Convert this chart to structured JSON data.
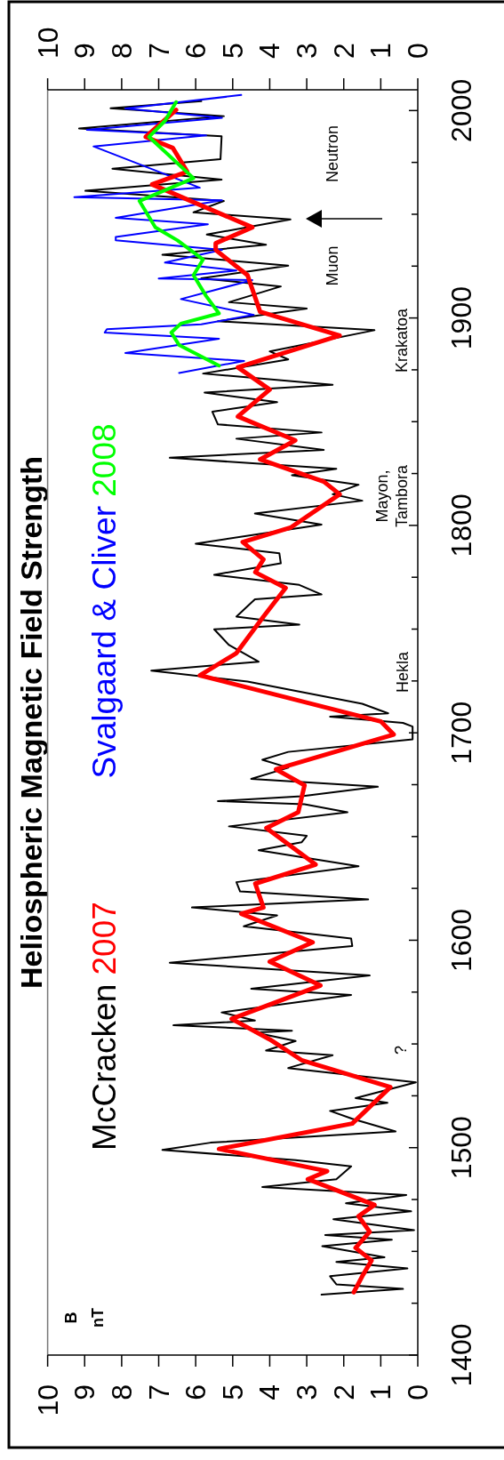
{
  "chart_data": {
    "type": "line",
    "title": "Heliospheric Magnetic Field Strength",
    "grid": false,
    "ylim": [
      1400,
      2010
    ],
    "yticks": [
      1400,
      {
        "value": 1425,
        "label": null
      },
      {
        "value": 1450,
        "label": null
      },
      {
        "value": 1475,
        "label": null
      },
      1500,
      {
        "value": 1525,
        "label": null
      },
      {
        "value": 1550,
        "label": null
      },
      {
        "value": 1575,
        "label": null
      },
      1600,
      {
        "value": 1625,
        "label": null
      },
      {
        "value": 1650,
        "label": null
      },
      {
        "value": 1675,
        "label": null
      },
      1700,
      {
        "value": 1725,
        "label": null
      },
      {
        "value": 1750,
        "label": null
      },
      {
        "value": 1775,
        "label": null
      },
      1800,
      {
        "value": 1825,
        "label": null
      },
      {
        "value": 1850,
        "label": null
      },
      {
        "value": 1875,
        "label": null
      },
      1900,
      {
        "value": 1925,
        "label": null
      },
      {
        "value": 1950,
        "label": null
      },
      {
        "value": 1975,
        "label": null
      },
      2000
    ],
    "xlim": [
      10,
      0
    ],
    "xticks": [
      10,
      9,
      8,
      7,
      6,
      5,
      4,
      3,
      2,
      1,
      0
    ],
    "x2lim": [
      10,
      0
    ],
    "x2ticks": [
      10,
      9,
      8,
      7,
      6,
      5,
      4,
      3,
      2,
      1,
      0
    ],
    "series": [
      {
        "name": "McCracken",
        "color": "#000000",
        "values": [
          1429.1,
          1431.9,
          1434.1,
          1438,
          1441.8,
          1444.9,
          1447.2,
          1452.5,
          1455.6,
          1457.9,
          1460.2,
          1465.5,
          1469.3,
          1473.2,
          1477.2,
          1481,
          1484.8,
          1491,
          1494,
          1498.9,
          1502.4,
          1507.8,
          1513.9,
          1517.7,
          1521.6,
          1523.9,
          1531.5,
          1538.4,
          1544.6,
          1546.8,
          1551.4,
          1555.5,
          1556.4,
          1559,
          1561.3,
          1565.2,
          1573.6,
          1576.6,
          1583,
          1589.2,
          1597.2,
          1600.8,
          1606.7,
          1612,
          1615.8,
          1619.7,
          1623.5,
          1628,
          1635.7,
          1643.4,
          1647.2,
          1650.3,
          1654.9,
          1661.7,
          1665.6,
          1667.1,
          1669.4,
          1674,
          1677.8,
          1683.2,
          1687,
          1690.8,
          1696.9,
          1703,
          1704.8,
          1707.8,
          1709.4,
          1714,
          1724.7,
          1730,
          1734.3,
          1742.3,
          1749.9,
          1752.2,
          1756,
          1764.4,
          1766.7,
          1771.3,
          1776.2,
          1781.7,
          1786.6,
          1791.2,
          1800.4,
          1805.7,
          1811.9,
          1815,
          1819.6,
          1824.2,
          1827.3,
          1832.6,
          1836.4,
          1841.8,
          1844.8,
          1848.7,
          1854.8,
          1859.4,
          1864,
          1867.8,
          1873.2,
          1880,
          1883.9,
          1894.1,
          1898.4,
          1904.5,
          1907.6,
          1915.2,
          1919.1,
          1925.2,
          1930.5,
          1935.3,
          1940.2,
          1947.5,
          1950.9,
          1956.4,
          1961.3,
          1966.7,
          1972,
          1976.6,
          1987.6,
          1991.4,
          1997.3,
          2001.1,
          2004.5
        ],
        "x": [
          2.6,
          0.4,
          2.2,
          2.37,
          0.28,
          2.2,
          0.9,
          2.58,
          0.7,
          2.5,
          0.1,
          2.28,
          0.18,
          1.94,
          0.31,
          4.2,
          2.2,
          1.8,
          3.3,
          6.9,
          5.6,
          0.6,
          1.77,
          2.37,
          0.82,
          1.68,
          0.05,
          3.5,
          2.3,
          4.1,
          3.3,
          4.4,
          3.4,
          6.6,
          4.4,
          5.3,
          1.8,
          4.5,
          1.3,
          6.7,
          1.77,
          1.8,
          4.7,
          3.8,
          6.1,
          1.34,
          4.8,
          4.9,
          1.6,
          4.3,
          3.14,
          3.0,
          5.1,
          1.9,
          3.06,
          5.4,
          3.14,
          1.08,
          4.5,
          3.5,
          4.2,
          3.5,
          0.14,
          0.14,
          0.4,
          2.37,
          0.8,
          1.5,
          4.6,
          7.2,
          4.3,
          5.1,
          5.5,
          3.2,
          4.9,
          4.4,
          2.6,
          3.2,
          5.5,
          3.7,
          3.74,
          6.0,
          2.6,
          4.4,
          1.5,
          2.3,
          1.6,
          3.4,
          2.2,
          6.7,
          2.54,
          4.9,
          2.6,
          5.4,
          5.55,
          3.8,
          5.76,
          2.3,
          5.8,
          3.5,
          4.0,
          1.17,
          5.4,
          3.0,
          5.1,
          3.7,
          5.85,
          3.5,
          6.9,
          4.1,
          5.7,
          3.44,
          6.06,
          5.24,
          8.98,
          5.3,
          8.25,
          5.33,
          5.3,
          9.15,
          5.24,
          8.3,
          5.85
        ]
      },
      {
        "name": "Svalgaard & Cliver",
        "color": "#0000ff",
        "values": [
          1873.5,
          1879.3,
          1883.1,
          1890,
          1893,
          1894.6,
          1896.9,
          1901.5,
          1909.1,
          1918.3,
          1919,
          1922.9,
          1926.7,
          1932.8,
          1937.4,
          1939.1,
          1945.2,
          1948.3,
          1956.7,
          1958.2,
          1962.8,
          1982.7,
          1988,
          1990.7,
          1996.5,
          2001,
          2007.5
        ],
        "x": [
          6.45,
          4.69,
          7.9,
          5.37,
          8.46,
          8.4,
          5.85,
          4.43,
          6.4,
          4.47,
          7.0,
          4.9,
          6.83,
          5.29,
          8.16,
          8.16,
          5.67,
          8.16,
          5.29,
          9.28,
          5.89,
          8.76,
          5.72,
          8.94,
          5.29,
          7.9,
          4.77
        ]
      },
      {
        "name": "2007",
        "color": "#ff0000",
        "values": [
          1430.3,
          1438,
          1445.6,
          1451.7,
          1459.4,
          1467,
          1472.4,
          1484.8,
          1488.7,
          1499.4,
          1511.6,
          1529.2,
          1542.2,
          1552.2,
          1562.1,
          1578.2,
          1589.7,
          1599,
          1612.8,
          1615.8,
          1627.3,
          1636.5,
          1654.1,
          1661.7,
          1674.7,
          1682.4,
          1699.2,
          1705.5,
          1727.7,
          1738.4,
          1756,
          1769.8,
          1777.4,
          1783.6,
          1792,
          1798.9,
          1815,
          1821.1,
          1831.8,
          1841,
          1852.5,
          1865.5,
          1876.2,
          1891.5,
          1903,
          1920.6,
          1932.8,
          1936,
          1943.7,
          1964.4,
          1970.5,
          1982,
          1987.3,
          2000.3
        ],
        "x": [
          1.73,
          1.5,
          1.25,
          1.68,
          1.3,
          1.6,
          1.17,
          2.97,
          2.45,
          5.37,
          1.77,
          0.74,
          3.14,
          4.0,
          5.03,
          2.63,
          4.0,
          2.84,
          4.77,
          4.17,
          4.39,
          2.76,
          4.09,
          3.23,
          3.06,
          3.83,
          0.65,
          1.0,
          5.89,
          4.9,
          4.17,
          3.57,
          4.39,
          4.17,
          4.73,
          3.44,
          2.11,
          2.54,
          4.26,
          3.31,
          4.86,
          4.0,
          4.86,
          2.11,
          4.26,
          4.6,
          5.46,
          5.46,
          4.47,
          7.18,
          6.23,
          6.62,
          7.35,
          6.53
        ]
      },
      {
        "name": "2008",
        "color": "#00ff00",
        "values": [
          1877,
          1887,
          1893,
          1897.3,
          1902.2,
          1910.6,
          1920.6,
          1928.2,
          1937.4,
          1943.7,
          1956.4,
          1967.4,
          1987.3,
          1995,
          2004.1
        ],
        "x": [
          5.37,
          6.45,
          6.66,
          6.4,
          5.37,
          5.72,
          6.06,
          5.8,
          6.49,
          7.09,
          7.52,
          6.06,
          7.26,
          6.83,
          6.53
        ]
      }
    ],
    "annotations": [
      "?",
      "Hekla",
      "Mayon, Tambora",
      "Krakatoa",
      "Muon",
      "Neutron",
      "B nT"
    ]
  }
}
